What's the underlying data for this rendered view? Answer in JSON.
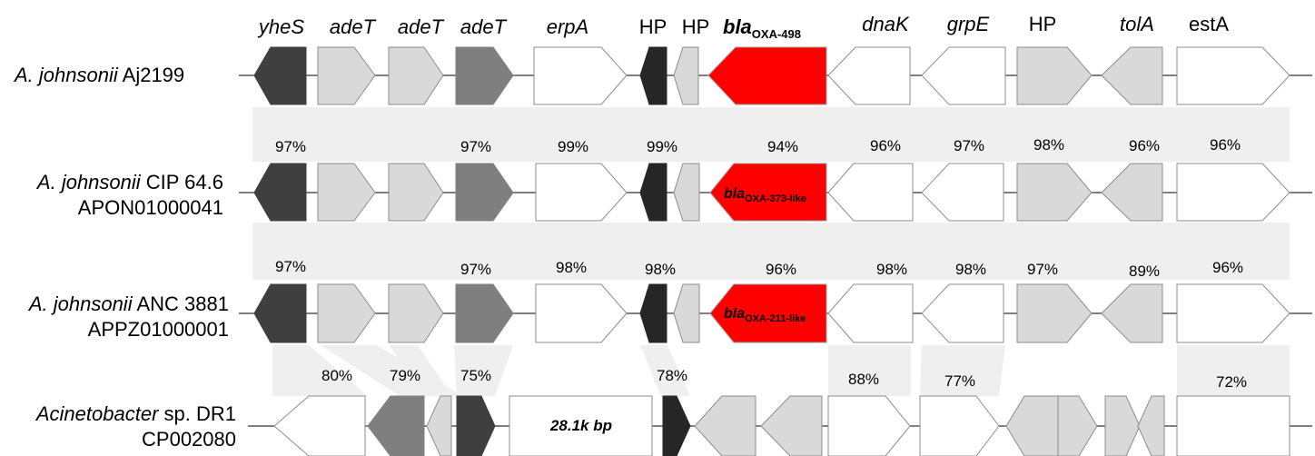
{
  "gene_names": [
    {
      "text": "yheS",
      "italic": true
    },
    {
      "text": "adeT",
      "italic": true
    },
    {
      "text": "adeT",
      "italic": true
    },
    {
      "text": "adeT",
      "italic": true
    },
    {
      "text": "erpA",
      "italic": true
    },
    {
      "text": "HP",
      "italic": false
    },
    {
      "text": "HP",
      "italic": false
    },
    {
      "text": "bla",
      "sub": "OXA-498",
      "italic": true,
      "bold": true
    },
    {
      "text": "dnaK",
      "italic": true
    },
    {
      "text": "grpE",
      "italic": true
    },
    {
      "text": "HP",
      "italic": false
    },
    {
      "text": "tolA",
      "italic": true
    },
    {
      "text": "estA",
      "italic": false
    }
  ],
  "strains": [
    {
      "name_italic": "A. johnsonii",
      "name_rest": " Aj2199",
      "accession": ""
    },
    {
      "name_italic": "A. johnsonii",
      "name_rest": " CIP 64.6",
      "accession": "APON01000041"
    },
    {
      "name_italic": "A. johnsonii",
      "name_rest": " ANC 3881",
      "accession": "APPZ01000001"
    },
    {
      "name_italic": "Acinetobacter",
      "name_rest": " sp. DR1",
      "accession": "CP002080"
    }
  ],
  "identity": {
    "row2": [
      "97%",
      "97%",
      "99%",
      "99%",
      "94%",
      "96%",
      "97%",
      "98%",
      "96%",
      "96%"
    ],
    "row3": [
      "97%",
      "97%",
      "98%",
      "98%",
      "96%",
      "98%",
      "98%",
      "97%",
      "89%",
      "96%"
    ],
    "row4": [
      "80%",
      "79%",
      "75%",
      "78%",
      "88%",
      "77%",
      "72%"
    ]
  },
  "bla_variants": {
    "row2": {
      "main": "bla",
      "sub": "OXA-373-like"
    },
    "row3": {
      "main": "bla",
      "sub": "OXA-211-like"
    }
  },
  "insert_label": "28.1k bp",
  "colors": {
    "dark": "#3f3f3f",
    "black": "#262626",
    "medium": "#7f7f7f",
    "light": "#d9d9d9",
    "white": "#ffffff",
    "red": "#ff0000",
    "shade": "#efefef"
  }
}
